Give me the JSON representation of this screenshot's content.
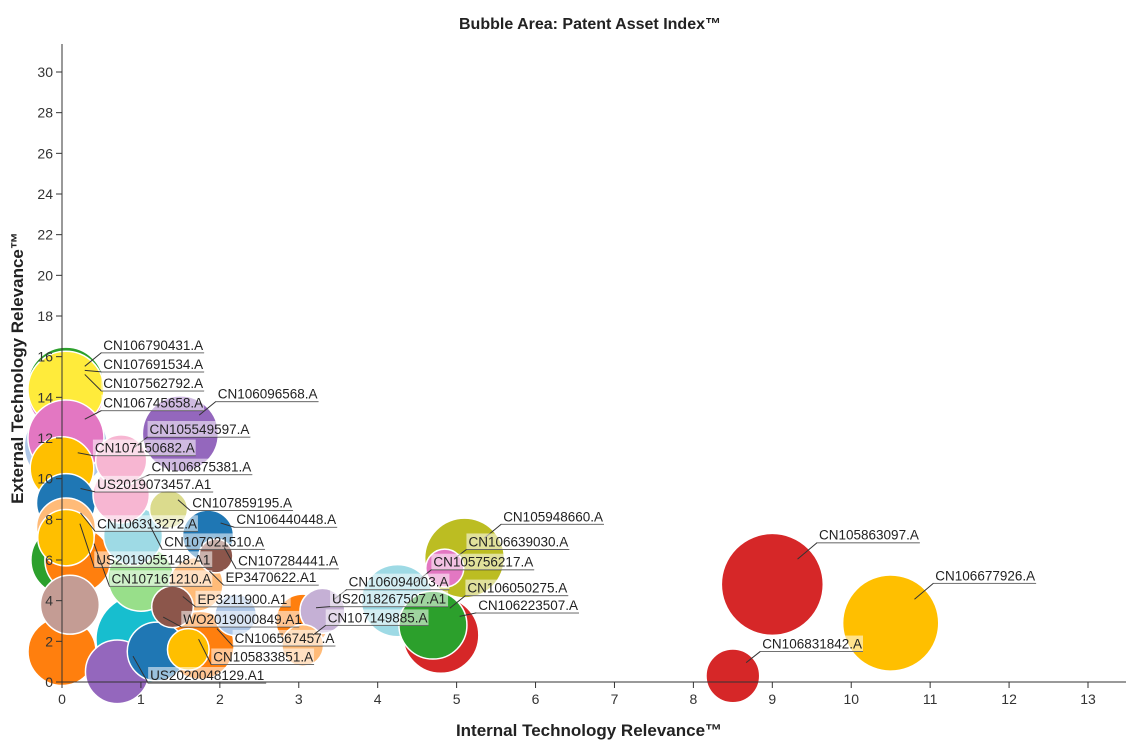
{
  "chart_data": {
    "type": "scatter",
    "title": "Bubble Area:  Patent Asset Index™",
    "xlabel": "Internal Technology Relevance™",
    "ylabel": "External Technology Relevance™",
    "xlim": [
      0,
      13
    ],
    "ylim": [
      0,
      30
    ],
    "x_ticks": [
      0,
      1,
      2,
      3,
      4,
      5,
      6,
      7,
      8,
      9,
      10,
      11,
      12,
      13
    ],
    "y_ticks": [
      0,
      2,
      4,
      6,
      8,
      10,
      12,
      14,
      16,
      18,
      20,
      22,
      24,
      26,
      28,
      30
    ],
    "grid": false,
    "points": [
      {
        "x": 0.05,
        "y": 14.6,
        "size": 1.0,
        "color": "#2ca02c",
        "label": "CN106790431.A"
      },
      {
        "x": 0.05,
        "y": 14.2,
        "size": 1.0,
        "color": "#e377c2",
        "label": "CN107562792.A"
      },
      {
        "x": 0.05,
        "y": 14.4,
        "size": 1.0,
        "color": "#ffeb3b",
        "label": "CN107691534.A"
      },
      {
        "x": 1.5,
        "y": 12.2,
        "size": 1.0,
        "color": "#9467bd",
        "label": "CN106096568.A"
      },
      {
        "x": 0.05,
        "y": 12.0,
        "size": 1.0,
        "color": "#e377c2",
        "label": "CN106745658.A"
      },
      {
        "x": 0.05,
        "y": 11.6,
        "size": 1.2,
        "color": "#aec7e8",
        "label": ""
      },
      {
        "x": 0.75,
        "y": 10.9,
        "size": 0.45,
        "color": "#f7b6d2",
        "label": "CN105549597.A"
      },
      {
        "x": 0.0,
        "y": 10.5,
        "size": 0.7,
        "color": "#ffbf00",
        "label": "CN107150682.A"
      },
      {
        "x": 0.75,
        "y": 9.2,
        "size": 0.55,
        "color": "#f7b6d2",
        "label": "CN106875381.A"
      },
      {
        "x": 1.35,
        "y": 8.5,
        "size": 0.25,
        "color": "#dbdb8d",
        "label": "CN107859195.A"
      },
      {
        "x": 0.05,
        "y": 8.8,
        "size": 0.6,
        "color": "#1f77b4",
        "label": "US2019073457.A1"
      },
      {
        "x": 0.05,
        "y": 7.6,
        "size": 0.6,
        "color": "#ffbb78",
        "label": "CN106313272.A"
      },
      {
        "x": 1.85,
        "y": 7.2,
        "size": 0.45,
        "color": "#1f77b4",
        "label": "CN106440448.A"
      },
      {
        "x": 0.05,
        "y": 7.1,
        "size": 0.55,
        "color": "#ffbf00",
        "label": "US2019055148.A1"
      },
      {
        "x": 0.9,
        "y": 7.2,
        "size": 0.6,
        "color": "#9edae5",
        "label": "CN107021510.A"
      },
      {
        "x": 0.2,
        "y": 6.0,
        "size": 0.75,
        "color": "#ff7f0e",
        "label": "CN107161210.A"
      },
      {
        "x": 0.05,
        "y": 6.0,
        "size": 0.85,
        "color": "#2ca02c",
        "label": ""
      },
      {
        "x": 1.95,
        "y": 6.2,
        "size": 0.2,
        "color": "#8c564b",
        "label": "CN107284441.A"
      },
      {
        "x": 5.1,
        "y": 6.1,
        "size": 1.1,
        "color": "#bcbd22",
        "label": "CN105948660.A"
      },
      {
        "x": 4.85,
        "y": 5.6,
        "size": 0.25,
        "color": "#e377c2",
        "label": "CN106639030.A"
      },
      {
        "x": 1.0,
        "y": 5.1,
        "size": 0.75,
        "color": "#98df8a",
        "label": ""
      },
      {
        "x": 1.7,
        "y": 4.8,
        "size": 0.5,
        "color": "#ffbb78",
        "label": "EP3470622.A1"
      },
      {
        "x": 9.0,
        "y": 4.8,
        "size": 1.8,
        "color": "#d62728",
        "label": "CN105863097.A"
      },
      {
        "x": 4.25,
        "y": 4.0,
        "size": 0.9,
        "color": "#9edae5",
        "label": "CN105756217.A"
      },
      {
        "x": 3.3,
        "y": 3.5,
        "size": 0.35,
        "color": "#c5b0d5",
        "label": "CN106094003.A"
      },
      {
        "x": 1.4,
        "y": 3.7,
        "size": 0.3,
        "color": "#8c564b",
        "label": "EP3211900.A1"
      },
      {
        "x": 0.1,
        "y": 3.8,
        "size": 0.6,
        "color": "#c49c94",
        "label": ""
      },
      {
        "x": 4.7,
        "y": 2.8,
        "size": 0.8,
        "color": "#2ca02c",
        "label": "CN106050275.A"
      },
      {
        "x": 10.5,
        "y": 2.9,
        "size": 1.6,
        "color": "#ffbf00",
        "label": "CN106677926.A"
      },
      {
        "x": 3.05,
        "y": 3.0,
        "size": 0.5,
        "color": "#ff7f0e",
        "label": "US2018267507.A1"
      },
      {
        "x": 4.8,
        "y": 2.3,
        "size": 1.0,
        "color": "#d62728",
        "label": "CN106223507.A"
      },
      {
        "x": 2.2,
        "y": 3.3,
        "size": 0.3,
        "color": "#aec7e8",
        "label": ""
      },
      {
        "x": 1.0,
        "y": 2.1,
        "size": 1.4,
        "color": "#17becf",
        "label": "WO2019000849.A1"
      },
      {
        "x": 1.75,
        "y": 1.8,
        "size": 0.8,
        "color": "#ff7f0e",
        "label": "CN106567457.A"
      },
      {
        "x": 1.2,
        "y": 1.5,
        "size": 0.6,
        "color": "#1f77b4",
        "label": ""
      },
      {
        "x": 0.0,
        "y": 1.5,
        "size": 0.8,
        "color": "#ff7f0e",
        "label": ""
      },
      {
        "x": 0.7,
        "y": 0.5,
        "size": 0.7,
        "color": "#9467bd",
        "label": "US2020048129.A1"
      },
      {
        "x": 3.05,
        "y": 1.8,
        "size": 0.3,
        "color": "#ffbb78",
        "label": "CN107149885.A"
      },
      {
        "x": 1.6,
        "y": 1.6,
        "size": 0.3,
        "color": "#ffbf00",
        "label": "CN105833851.A"
      },
      {
        "x": 8.5,
        "y": 0.3,
        "size": 0.5,
        "color": "#d62728",
        "label": "CN106831842.A"
      }
    ]
  }
}
